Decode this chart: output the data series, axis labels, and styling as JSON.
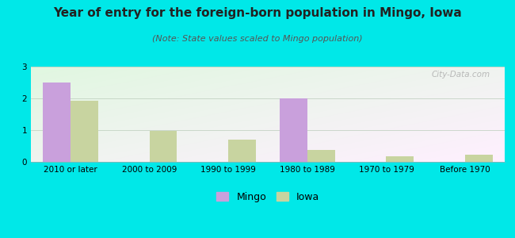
{
  "title": "Year of entry for the foreign-born population in Mingo, Iowa",
  "subtitle": "(Note: State values scaled to Mingo population)",
  "categories": [
    "2010 or later",
    "2000 to 2009",
    "1990 to 1999",
    "1980 to 1989",
    "1970 to 1979",
    "Before 1970"
  ],
  "mingo_values": [
    2.5,
    0,
    0,
    2.0,
    0,
    0
  ],
  "iowa_values": [
    1.93,
    0.97,
    0.7,
    0.37,
    0.17,
    0.22
  ],
  "mingo_color": "#c9a0dc",
  "iowa_color": "#c8d4a0",
  "background_color": "#00e8e8",
  "ylim": [
    0,
    3
  ],
  "yticks": [
    0,
    1,
    2,
    3
  ],
  "bar_width": 0.35,
  "title_fontsize": 11,
  "subtitle_fontsize": 8,
  "tick_fontsize": 7.5,
  "legend_fontsize": 9,
  "watermark": "City-Data.com"
}
